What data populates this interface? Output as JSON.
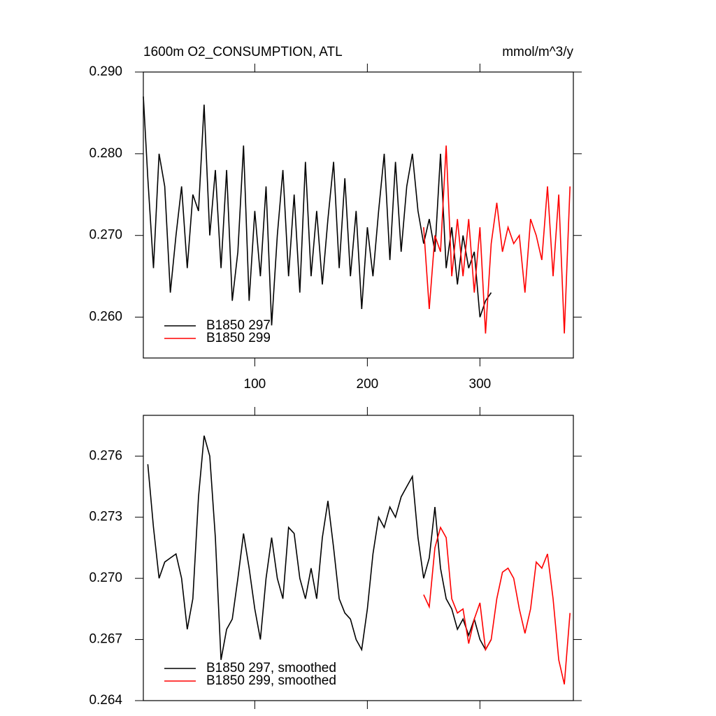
{
  "chart_data": [
    {
      "type": "line",
      "title": "1600m O2_CONSUMPTION, ATL",
      "subtitle": "mmol/m^3/y",
      "x": [
        1,
        5,
        10,
        15,
        20,
        25,
        30,
        35,
        40,
        45,
        50,
        55,
        60,
        65,
        70,
        75,
        80,
        85,
        90,
        95,
        100,
        105,
        110,
        115,
        120,
        125,
        130,
        135,
        140,
        145,
        150,
        155,
        160,
        165,
        170,
        175,
        180,
        185,
        190,
        195,
        200,
        205,
        210,
        215,
        220,
        225,
        230,
        235,
        240,
        245,
        250,
        255,
        260,
        265,
        270,
        275,
        280,
        285,
        290,
        295,
        300,
        305,
        310,
        315,
        320,
        325,
        330,
        335,
        340,
        345,
        350,
        355,
        360,
        365,
        370,
        375,
        380
      ],
      "series": [
        {
          "name": "B1850 297",
          "color": "#000000",
          "values": [
            0.287,
            0.277,
            0.266,
            0.28,
            0.276,
            0.263,
            0.27,
            0.276,
            0.266,
            0.275,
            0.273,
            0.286,
            0.27,
            0.278,
            0.266,
            0.278,
            0.262,
            0.268,
            0.281,
            0.262,
            0.273,
            0.265,
            0.276,
            0.259,
            0.27,
            0.278,
            0.265,
            0.275,
            0.263,
            0.279,
            0.265,
            0.273,
            0.264,
            0.272,
            0.279,
            0.266,
            0.277,
            0.265,
            0.273,
            0.261,
            0.271,
            0.265,
            0.273,
            0.28,
            0.267,
            0.279,
            0.268,
            0.276,
            0.28,
            0.273,
            0.269,
            0.272,
            0.268,
            0.28,
            0.266,
            0.271,
            0.264,
            0.27,
            0.266,
            0.268,
            0.26,
            0.262,
            0.263,
            null,
            null,
            null,
            null,
            null,
            null,
            null,
            null,
            null,
            null,
            null,
            null,
            null,
            null
          ]
        },
        {
          "name": "B1850 299",
          "color": "#ff0000",
          "values": [
            null,
            null,
            null,
            null,
            null,
            null,
            null,
            null,
            null,
            null,
            null,
            null,
            null,
            null,
            null,
            null,
            null,
            null,
            null,
            null,
            null,
            null,
            null,
            null,
            null,
            null,
            null,
            null,
            null,
            null,
            null,
            null,
            null,
            null,
            null,
            null,
            null,
            null,
            null,
            null,
            null,
            null,
            null,
            null,
            null,
            null,
            null,
            null,
            null,
            null,
            0.271,
            0.261,
            0.27,
            0.268,
            0.281,
            0.265,
            0.272,
            0.265,
            0.272,
            0.263,
            0.271,
            0.258,
            0.269,
            0.274,
            0.268,
            0.271,
            0.269,
            0.27,
            0.263,
            0.272,
            0.27,
            0.267,
            0.276,
            0.265,
            0.275,
            0.258,
            0.276
          ]
        }
      ],
      "xlim": [
        1,
        383
      ],
      "xticks": [
        100,
        200,
        300
      ],
      "ylim": [
        0.255,
        0.29
      ],
      "yticks": [
        {
          "value": 0.26,
          "label": "0.260"
        },
        {
          "value": 0.27,
          "label": "0.270"
        },
        {
          "value": 0.28,
          "label": "0.280"
        },
        {
          "value": 0.29,
          "label": "0.290"
        }
      ],
      "legend": "lower left"
    },
    {
      "type": "line",
      "x": [
        1,
        5,
        10,
        15,
        20,
        25,
        30,
        35,
        40,
        45,
        50,
        55,
        60,
        65,
        70,
        75,
        80,
        85,
        90,
        95,
        100,
        105,
        110,
        115,
        120,
        125,
        130,
        135,
        140,
        145,
        150,
        155,
        160,
        165,
        170,
        175,
        180,
        185,
        190,
        195,
        200,
        205,
        210,
        215,
        220,
        225,
        230,
        235,
        240,
        245,
        250,
        255,
        260,
        265,
        270,
        275,
        280,
        285,
        290,
        295,
        300,
        305,
        310,
        315,
        320,
        325,
        330,
        335,
        340,
        345,
        350,
        355,
        360,
        365,
        370,
        375,
        380
      ],
      "series": [
        {
          "name": "B1850 297, smoothed",
          "color": "#000000",
          "values": [
            null,
            0.2756,
            0.2725,
            0.27,
            0.2708,
            0.271,
            0.2712,
            0.27,
            0.2675,
            0.269,
            0.274,
            0.277,
            0.276,
            0.272,
            0.266,
            0.2675,
            0.268,
            0.27,
            0.2722,
            0.2705,
            0.2685,
            0.267,
            0.27,
            0.272,
            0.27,
            0.269,
            0.2725,
            0.2722,
            0.27,
            0.269,
            0.2705,
            0.269,
            0.272,
            0.2738,
            0.2715,
            0.269,
            0.2683,
            0.268,
            0.267,
            0.2665,
            0.2685,
            0.2712,
            0.273,
            0.2725,
            0.2735,
            0.273,
            0.274,
            0.2745,
            0.275,
            0.272,
            0.27,
            0.271,
            0.2735,
            0.2705,
            0.269,
            0.2685,
            0.2675,
            0.268,
            0.2672,
            0.268,
            0.267,
            0.2665,
            0.267,
            null,
            null,
            null,
            null,
            null,
            null,
            null,
            null,
            null,
            null,
            null,
            null,
            null,
            null
          ]
        },
        {
          "name": "B1850 299, smoothed",
          "color": "#ff0000",
          "values": [
            null,
            null,
            null,
            null,
            null,
            null,
            null,
            null,
            null,
            null,
            null,
            null,
            null,
            null,
            null,
            null,
            null,
            null,
            null,
            null,
            null,
            null,
            null,
            null,
            null,
            null,
            null,
            null,
            null,
            null,
            null,
            null,
            null,
            null,
            null,
            null,
            null,
            null,
            null,
            null,
            null,
            null,
            null,
            null,
            null,
            null,
            null,
            null,
            null,
            null,
            0.2692,
            0.2686,
            0.2715,
            0.2725,
            0.272,
            0.269,
            0.2683,
            0.2685,
            0.2668,
            0.268,
            0.2688,
            0.2665,
            0.267,
            0.269,
            0.2703,
            0.2705,
            0.27,
            0.2685,
            0.2673,
            0.2685,
            0.2708,
            0.2705,
            0.2712,
            0.269,
            0.266,
            0.2648,
            0.2683
          ]
        }
      ],
      "xlim": [
        1,
        383
      ],
      "xticks": [
        100,
        200,
        300
      ],
      "ylim": [
        0.264,
        0.278
      ],
      "yticks": [
        0.264,
        0.267,
        {
          "value": 0.27,
          "label": "0.270"
        },
        0.273,
        0.276
      ],
      "legend": "lower left"
    }
  ]
}
